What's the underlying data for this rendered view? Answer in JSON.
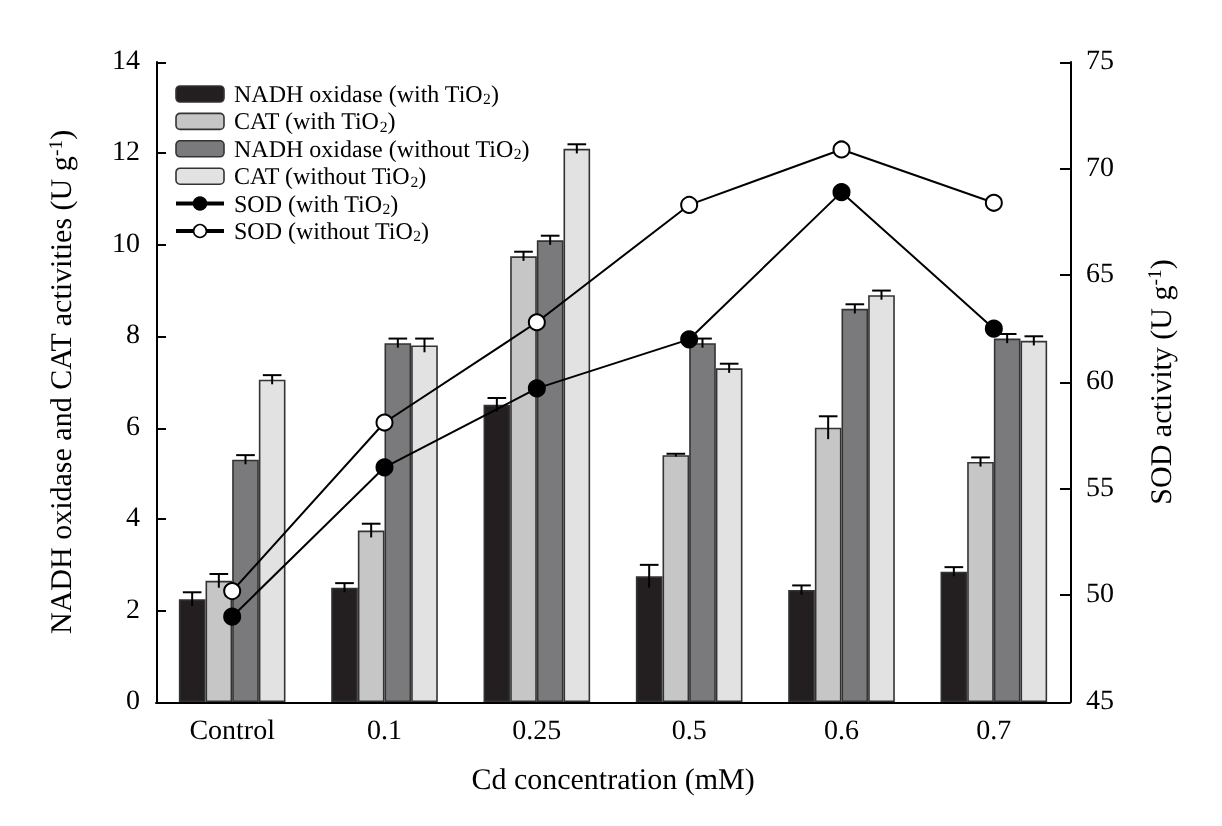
{
  "chart_data": {
    "type": "bar",
    "xlabel": "Cd concentration (mM)",
    "ylabel": "NADH oxidase and CAT activities (U g$^{-1}$)",
    "y2label": "SOD activity (U g$^{-1}$)",
    "categories": [
      "Control",
      "0.1",
      "0.25",
      "0.5",
      "0.6",
      "0.7"
    ],
    "series": [
      {
        "name": "NADH oxidase (with TiO$_{2}$)",
        "color": "#231f20",
        "values": [
          2.25,
          2.5,
          6.5,
          2.75,
          2.45,
          2.85
        ],
        "errors": [
          0.15,
          0.1,
          0.15,
          0.25,
          0.1,
          0.1
        ]
      },
      {
        "name": "CAT (with TiO$_{2}$)",
        "color": "#c6c6c6",
        "values": [
          2.65,
          3.75,
          9.75,
          5.4,
          6.0,
          5.25
        ],
        "errors": [
          0.15,
          0.15,
          0.1,
          0.03,
          0.25,
          0.1
        ]
      },
      {
        "name": "NADH oxidase (without TiO$_{2}$)",
        "color": "#7a7a7c",
        "values": [
          5.3,
          7.85,
          10.1,
          7.85,
          8.6,
          7.95
        ],
        "errors": [
          0.1,
          0.1,
          0.1,
          0.1,
          0.1,
          0.1
        ]
      },
      {
        "name": "CAT (without TiO$_{2}$)",
        "color": "#e2e2e2",
        "values": [
          7.05,
          7.8,
          12.1,
          7.3,
          8.9,
          7.9
        ],
        "errors": [
          0.1,
          0.15,
          0.1,
          0.1,
          0.1,
          0.1
        ]
      },
      {
        "name": "SOD (with TiO$_{2}$)",
        "type": "line",
        "axis": "y2",
        "color": "#000000",
        "values": [
          49,
          56,
          59.7,
          62,
          68.9,
          62.5
        ]
      },
      {
        "name": "SOD (without TiO$_{2}$)",
        "type": "line",
        "axis": "y2",
        "color": "#ffffff",
        "values": [
          50.2,
          58.1,
          62.8,
          68.3,
          70.9,
          68.4
        ]
      }
    ],
    "ylim": [
      0,
      14
    ],
    "yticks": [
      0,
      2,
      4,
      6,
      8,
      10,
      12,
      14
    ],
    "y2lim": [
      45,
      75
    ],
    "y2ticks": [
      45,
      50,
      55,
      60,
      65,
      70,
      75
    ],
    "grid": false,
    "legend": "top left",
    "marker": "circle",
    "line_style": "solid"
  }
}
